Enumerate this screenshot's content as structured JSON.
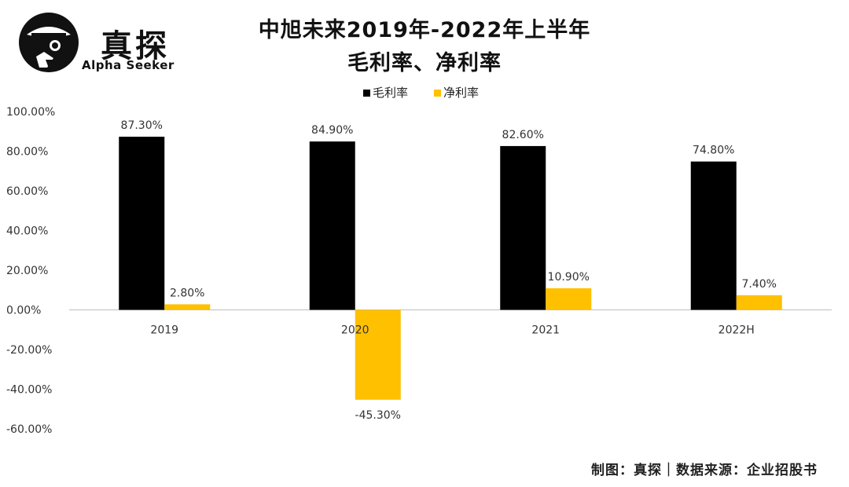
{
  "logo": {
    "cn": "真探",
    "en": "Alpha Seeker"
  },
  "source_note": "制图：真探｜数据来源：企业招股书",
  "chart_data": {
    "type": "bar",
    "title": [
      "中旭未来2019年-2022年上半年",
      "毛利率、净利率"
    ],
    "categories": [
      "2019",
      "2020",
      "2021",
      "2022H"
    ],
    "series": [
      {
        "name": "毛利率",
        "values": [
          87.3,
          84.9,
          82.6,
          74.8
        ],
        "labels": [
          "87.30%",
          "84.90%",
          "82.60%",
          "74.80%"
        ],
        "color": "#000000"
      },
      {
        "name": "净利率",
        "values": [
          2.8,
          -45.3,
          10.9,
          7.4
        ],
        "labels": [
          "2.80%",
          "-45.30%",
          "10.90%",
          "7.40%"
        ],
        "color": "#FFC000"
      }
    ],
    "ylim": [
      -60,
      100
    ],
    "yticks": [
      100,
      80,
      60,
      40,
      20,
      0,
      -20,
      -40,
      -60
    ],
    "ytick_labels": [
      "100.00%",
      "80.00%",
      "60.00%",
      "40.00%",
      "20.00%",
      "0.00%",
      "-20.00%",
      "-40.00%",
      "-60.00%"
    ],
    "legend_position": "top-center",
    "grid": false
  }
}
